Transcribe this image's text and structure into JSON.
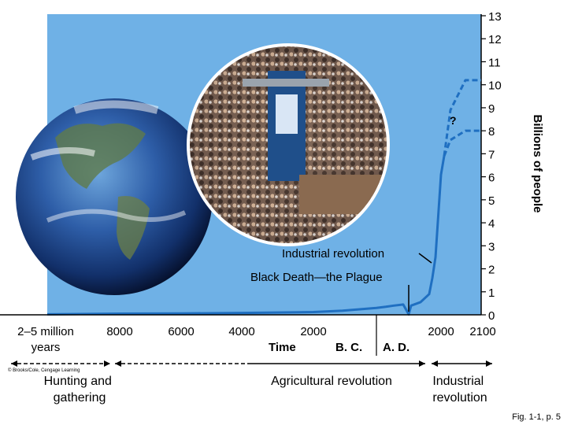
{
  "chart_data": {
    "type": "line",
    "title": "",
    "ylabel": "Billions of people",
    "xlabel": "Time",
    "ylim": [
      0,
      13
    ],
    "y_ticks": [
      0,
      1,
      2,
      3,
      4,
      5,
      6,
      7,
      8,
      9,
      10,
      11,
      12,
      13
    ],
    "x_tick_labels": [
      "2–5 million years",
      "8000",
      "6000",
      "4000",
      "2000",
      "2000",
      "2100"
    ],
    "era_labels": [
      "B. C.",
      "A. D."
    ],
    "series": [
      {
        "name": "",
        "style": "solid",
        "x": [
          "2–5 million years",
          "8000 B.C.",
          "6000 B.C.",
          "4000 B.C.",
          "2000 B.C.",
          "1000 B.C.",
          "0",
          "500 A.D.",
          "1000 A.D.",
          "1300 A.D.",
          "1348 A.D.",
          "1400 A.D.",
          "1600 A.D.",
          "1800 A.D.",
          "1900 A.D.",
          "1950 A.D.",
          "2000 A.D.",
          "2010 A.D."
        ],
        "values": [
          0.02,
          0.05,
          0.06,
          0.08,
          0.12,
          0.18,
          0.3,
          0.35,
          0.4,
          0.45,
          0.02,
          0.4,
          0.55,
          0.9,
          1.6,
          2.5,
          6.1,
          6.9
        ]
      },
      {
        "name": "",
        "style": "dashed",
        "x": [
          "2010 A.D.",
          "2050 A.D.",
          "2100 A.D."
        ],
        "values": [
          6.9,
          8.9,
          10.2
        ]
      },
      {
        "name": "",
        "style": "dashed",
        "x": [
          "2010 A.D.",
          "2050 A.D.",
          "2100 A.D."
        ],
        "values": [
          6.9,
          7.6,
          8.0
        ]
      }
    ],
    "annotations": {
      "question": "?",
      "industrial": "Industrial revolution",
      "black_death": "Black Death—the Plague"
    },
    "periods": {
      "hunting": "Hunting and gathering",
      "agricultural": "Agricultural revolution",
      "industrial": "Industrial revolution"
    },
    "credit": "© Brooks/Cole, Cengage Learning",
    "figure_ref": "Fig. 1-1, p. 5",
    "colors": {
      "plot_bg": "#6fb1e6",
      "line": "#1f6fc1",
      "axis": "#000000"
    },
    "grid": false
  }
}
